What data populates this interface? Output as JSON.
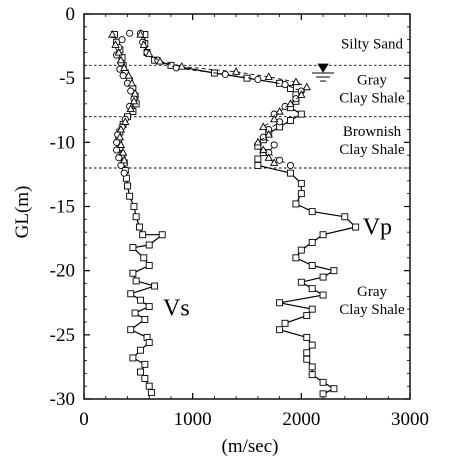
{
  "chart_data": {
    "type": "line",
    "title": "",
    "xlabel": "(m/sec)",
    "ylabel": "GL(m)",
    "xlim": [
      0,
      3000
    ],
    "ylim": [
      -30,
      0
    ],
    "xticks": [
      0,
      1000,
      2000,
      3000
    ],
    "yticks": [
      0,
      -5,
      -10,
      -15,
      -20,
      -25,
      -30
    ],
    "grid": false,
    "layer_boundaries": [
      -4,
      -8,
      -12
    ],
    "layer_labels": [
      {
        "id": "silty-sand",
        "lines": [
          "Silty Sand"
        ],
        "depth": -2.3
      },
      {
        "id": "gray-clay-shale-upper",
        "lines": [
          "Gray",
          "Clay Shale"
        ],
        "depth": -5.8
      },
      {
        "id": "brownish-clay-shale",
        "lines": [
          "Brownish",
          "Clay Shale"
        ],
        "depth": -9.8
      },
      {
        "id": "gray-clay-shale-lower",
        "lines": [
          "Gray",
          "Clay Shale"
        ],
        "depth": -22.3
      }
    ],
    "series_labels": [
      {
        "id": "vs",
        "text": "Vs",
        "x": 850,
        "y": -23.5
      },
      {
        "id": "vp",
        "text": "Vp",
        "x": 2700,
        "y": -17.2
      }
    ],
    "water_table_depth": -4.6,
    "series": [
      {
        "id": "vs-squares",
        "marker": "square",
        "line": "solid",
        "points": [
          [
            280,
            -1.6
          ],
          [
            300,
            -2.2
          ],
          [
            330,
            -2.8
          ],
          [
            350,
            -3.4
          ],
          [
            360,
            -4.0
          ],
          [
            380,
            -4.6
          ],
          [
            420,
            -5.2
          ],
          [
            450,
            -5.8
          ],
          [
            470,
            -6.4
          ],
          [
            480,
            -7.0
          ],
          [
            450,
            -7.6
          ],
          [
            400,
            -8.0
          ],
          [
            360,
            -8.6
          ],
          [
            330,
            -9.2
          ],
          [
            320,
            -9.8
          ],
          [
            330,
            -10.4
          ],
          [
            350,
            -11.0
          ],
          [
            370,
            -11.6
          ],
          [
            380,
            -12.2
          ],
          [
            390,
            -12.8
          ],
          [
            400,
            -13.4
          ],
          [
            420,
            -14.2
          ],
          [
            460,
            -15.0
          ],
          [
            480,
            -15.8
          ],
          [
            510,
            -16.6
          ],
          [
            540,
            -17.2
          ],
          [
            720,
            -17.2
          ],
          [
            600,
            -18.0
          ],
          [
            450,
            -18.2
          ],
          [
            550,
            -19.0
          ],
          [
            600,
            -19.6
          ],
          [
            450,
            -20.2
          ],
          [
            480,
            -20.8
          ],
          [
            650,
            -21.2
          ],
          [
            430,
            -21.8
          ],
          [
            520,
            -22.3
          ],
          [
            600,
            -22.8
          ],
          [
            470,
            -23.3
          ],
          [
            560,
            -23.8
          ],
          [
            430,
            -24.6
          ],
          [
            580,
            -25.2
          ],
          [
            600,
            -25.6
          ],
          [
            520,
            -26.2
          ],
          [
            450,
            -26.8
          ],
          [
            560,
            -27.3
          ],
          [
            520,
            -27.9
          ],
          [
            560,
            -28.4
          ],
          [
            600,
            -29.0
          ],
          [
            620,
            -29.5
          ]
        ]
      },
      {
        "id": "vs-circles",
        "marker": "circle",
        "line": "none",
        "points": [
          [
            420,
            -1.5
          ],
          [
            350,
            -2.0
          ],
          [
            320,
            -2.6
          ],
          [
            300,
            -3.2
          ],
          [
            340,
            -3.8
          ],
          [
            330,
            -4.3
          ],
          [
            360,
            -4.8
          ],
          [
            400,
            -5.4
          ],
          [
            430,
            -6.0
          ],
          [
            460,
            -6.6
          ],
          [
            420,
            -7.2
          ],
          [
            380,
            -8.2
          ],
          [
            350,
            -8.8
          ],
          [
            310,
            -9.4
          ],
          [
            300,
            -10.0
          ],
          [
            300,
            -10.6
          ],
          [
            320,
            -11.2
          ],
          [
            340,
            -11.8
          ],
          [
            370,
            -12.4
          ]
        ]
      },
      {
        "id": "vs-triangles",
        "marker": "triangle",
        "line": "none",
        "points": [
          [
            260,
            -1.6
          ],
          [
            290,
            -2.4
          ],
          [
            320,
            -3.0
          ],
          [
            340,
            -3.6
          ],
          [
            370,
            -4.2
          ],
          [
            410,
            -4.8
          ],
          [
            440,
            -5.4
          ],
          [
            470,
            -6.2
          ],
          [
            460,
            -6.8
          ],
          [
            430,
            -7.4
          ],
          [
            380,
            -8.4
          ],
          [
            340,
            -9.0
          ],
          [
            330,
            -9.6
          ],
          [
            340,
            -10.2
          ],
          [
            360,
            -10.8
          ],
          [
            370,
            -11.4
          ]
        ]
      },
      {
        "id": "vp-squares",
        "marker": "square",
        "line": "solid",
        "points": [
          [
            560,
            -1.6
          ],
          [
            560,
            -2.3
          ],
          [
            580,
            -3.0
          ],
          [
            650,
            -3.6
          ],
          [
            800,
            -4.0
          ],
          [
            1200,
            -4.6
          ],
          [
            1500,
            -5.0
          ],
          [
            1800,
            -5.4
          ],
          [
            1900,
            -5.8
          ],
          [
            1950,
            -6.3
          ],
          [
            1950,
            -6.8
          ],
          [
            1900,
            -7.3
          ],
          [
            2000,
            -7.8
          ],
          [
            1900,
            -8.3
          ],
          [
            1800,
            -8.8
          ],
          [
            1700,
            -9.3
          ],
          [
            1650,
            -9.8
          ],
          [
            1600,
            -10.3
          ],
          [
            1650,
            -10.8
          ],
          [
            1600,
            -11.3
          ],
          [
            1600,
            -11.8
          ],
          [
            1900,
            -12.4
          ],
          [
            2000,
            -13.2
          ],
          [
            2000,
            -14.0
          ],
          [
            1950,
            -14.8
          ],
          [
            2100,
            -15.4
          ],
          [
            2400,
            -15.8
          ],
          [
            2500,
            -16.6
          ],
          [
            2200,
            -17.2
          ],
          [
            2100,
            -17.8
          ],
          [
            2000,
            -18.4
          ],
          [
            1950,
            -19.0
          ],
          [
            2100,
            -19.6
          ],
          [
            2300,
            -20.0
          ],
          [
            2200,
            -20.5
          ],
          [
            2000,
            -20.9
          ],
          [
            2100,
            -21.4
          ],
          [
            2200,
            -21.9
          ],
          [
            1800,
            -22.5
          ],
          [
            2100,
            -23.0
          ],
          [
            2050,
            -23.5
          ],
          [
            1850,
            -24.1
          ],
          [
            1800,
            -24.6
          ],
          [
            2050,
            -25.2
          ],
          [
            2100,
            -25.8
          ],
          [
            2050,
            -26.4
          ],
          [
            2050,
            -26.9
          ],
          [
            2100,
            -27.5
          ],
          [
            2100,
            -28.1
          ],
          [
            2200,
            -28.7
          ],
          [
            2300,
            -29.2
          ],
          [
            2200,
            -29.6
          ]
        ]
      },
      {
        "id": "vp-circles",
        "marker": "circle",
        "line": "dashed",
        "points": [
          [
            520,
            -1.5
          ],
          [
            540,
            -2.2
          ],
          [
            580,
            -3.0
          ],
          [
            680,
            -3.6
          ],
          [
            850,
            -4.2
          ],
          [
            1300,
            -4.7
          ],
          [
            1600,
            -5.1
          ],
          [
            1850,
            -5.5
          ],
          [
            2000,
            -6.0
          ],
          [
            1950,
            -6.6
          ],
          [
            1850,
            -7.2
          ],
          [
            1750,
            -7.8
          ],
          [
            1800,
            -8.4
          ],
          [
            1700,
            -9.0
          ],
          [
            1650,
            -9.6
          ],
          [
            1750,
            -10.2
          ],
          [
            1700,
            -10.8
          ],
          [
            1800,
            -11.4
          ],
          [
            1900,
            -11.8
          ]
        ]
      },
      {
        "id": "vp-triangles",
        "marker": "triangle",
        "line": "dashed",
        "points": [
          [
            520,
            -1.6
          ],
          [
            550,
            -2.4
          ],
          [
            600,
            -3.1
          ],
          [
            700,
            -3.7
          ],
          [
            900,
            -4.1
          ],
          [
            1400,
            -4.5
          ],
          [
            1700,
            -4.9
          ],
          [
            1950,
            -5.3
          ],
          [
            2050,
            -5.7
          ],
          [
            2000,
            -6.3
          ],
          [
            1900,
            -7.0
          ],
          [
            1800,
            -7.6
          ],
          [
            1750,
            -8.2
          ],
          [
            1650,
            -8.8
          ],
          [
            1700,
            -9.4
          ],
          [
            1600,
            -10.0
          ],
          [
            1650,
            -10.6
          ],
          [
            1700,
            -11.2
          ],
          [
            1750,
            -11.6
          ]
        ]
      }
    ]
  }
}
